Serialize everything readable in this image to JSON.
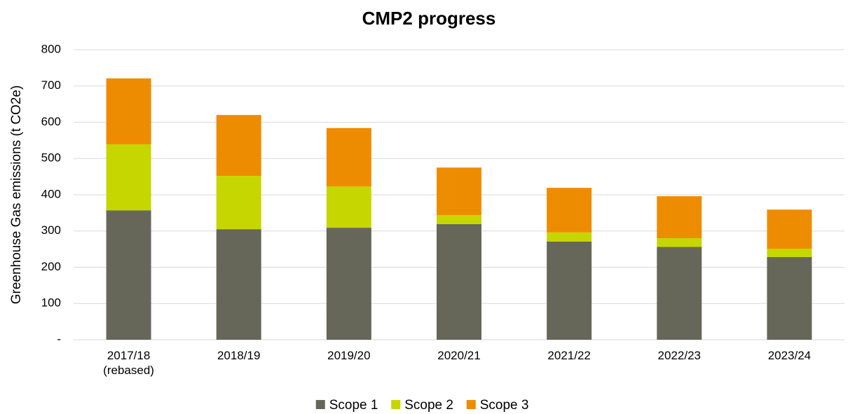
{
  "chart_data": {
    "type": "stacked_bar",
    "title": "CMP2 progress",
    "y_label": "Greenhouse Gas emissions (t CO2e)",
    "categories": [
      "2017/18 (rebased)",
      "2018/19",
      "2019/20",
      "2020/21",
      "2021/22",
      "2022/23",
      "2023/24"
    ],
    "series": [
      {
        "name": "Scope 1",
        "color": "#666759",
        "values": [
          357,
          305,
          309,
          319,
          271,
          256,
          228
        ]
      },
      {
        "name": "Scope 2",
        "color": "#c5d600",
        "values": [
          182,
          147,
          114,
          25,
          25,
          24,
          23
        ]
      },
      {
        "name": "Scope 3",
        "color": "#ee8c00",
        "values": [
          182,
          168,
          161,
          131,
          123,
          116,
          108
        ]
      }
    ],
    "ylim": [
      0,
      800
    ],
    "yticks": [
      {
        "value": 0,
        "label": "-"
      },
      100,
      200,
      300,
      400,
      500,
      600,
      700,
      800
    ],
    "grid": true,
    "legend": "bottom"
  }
}
